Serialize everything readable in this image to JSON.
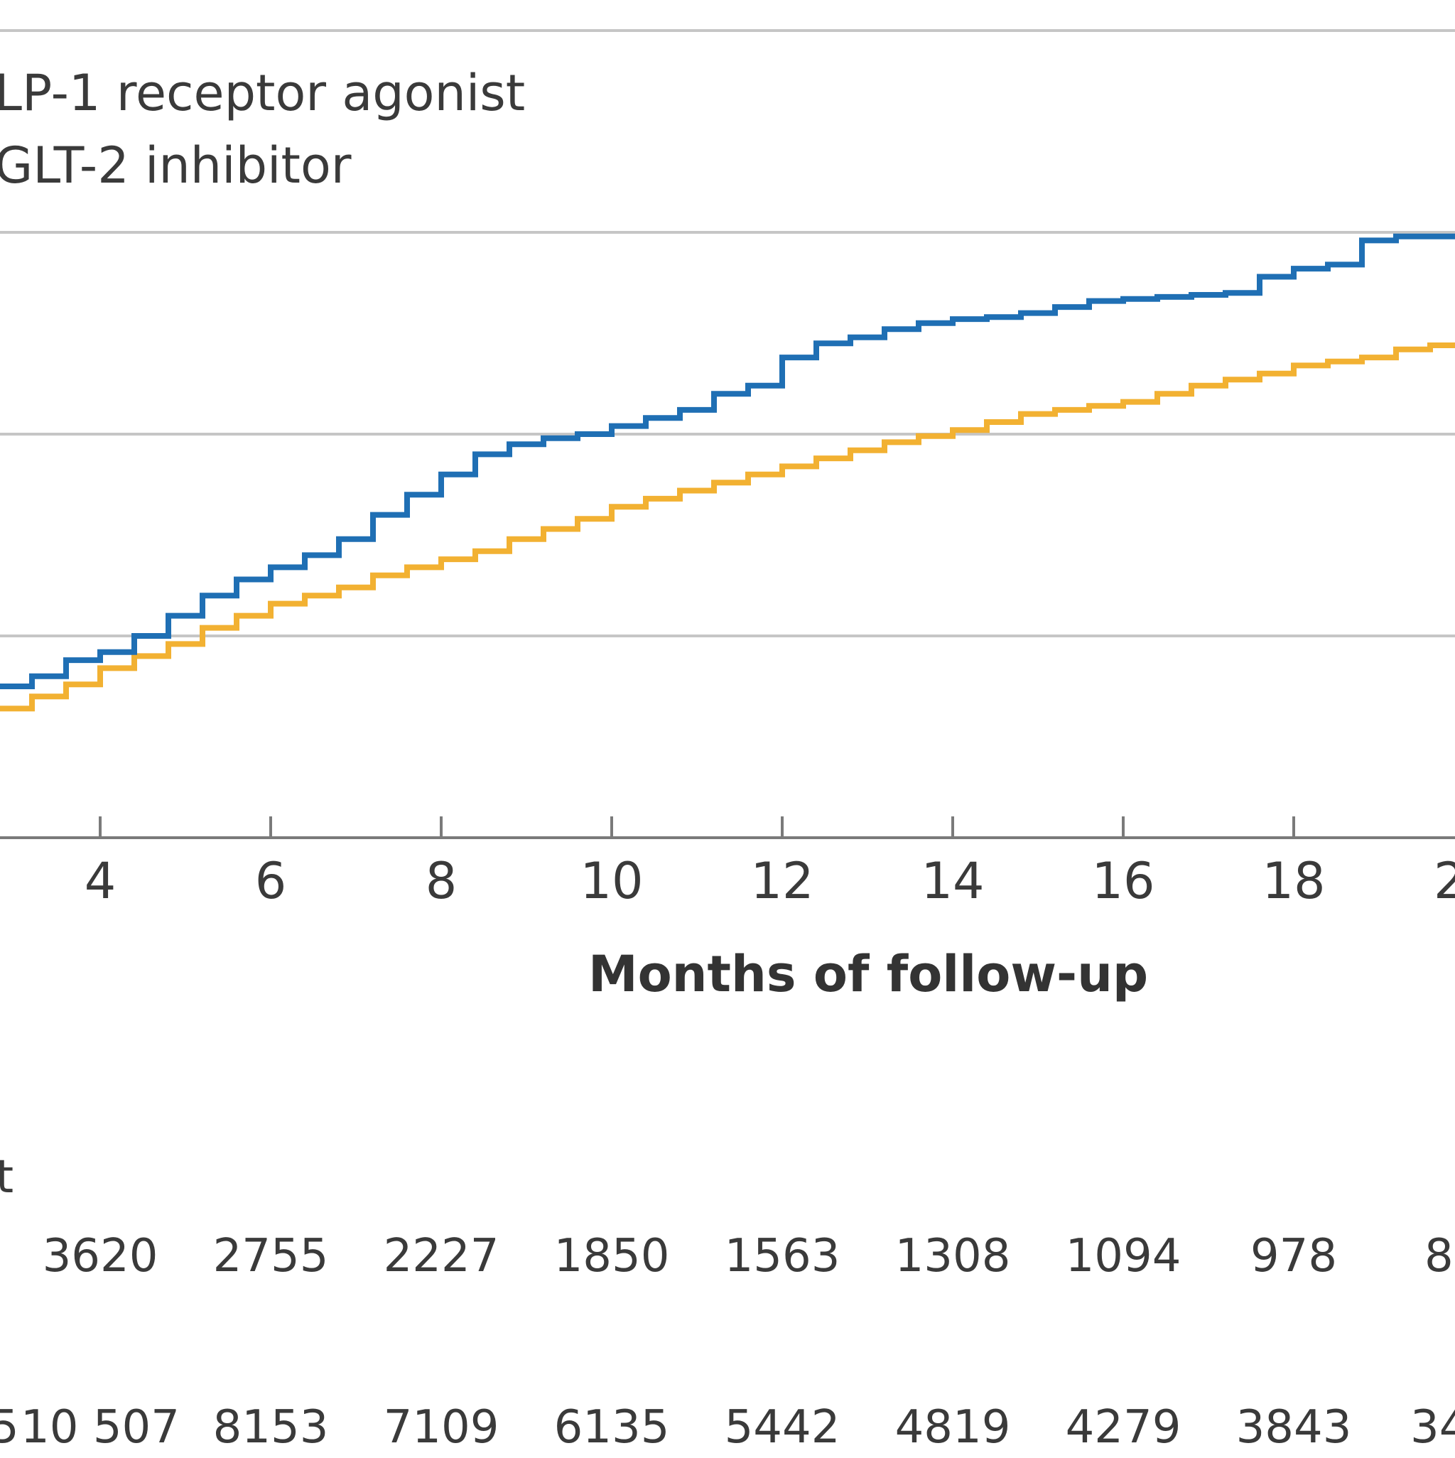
{
  "chart_data": {
    "type": "line",
    "step": true,
    "xlabel": "Months of follow-up",
    "ylabel": "",
    "x_ticks": [
      "4",
      "6",
      "8",
      "10",
      "12",
      "14",
      "16",
      "18",
      "2"
    ],
    "legend": [
      "LP-1 receptor agonist",
      "GLT-2 inhibitor"
    ],
    "colors": {
      "glp1": "#1f6fb4",
      "sglt2": "#f2b132",
      "grid": "#c6c6c6",
      "axis": "#7a7a7a"
    },
    "series": [
      {
        "key": "glp1",
        "color": "#1f6fb4",
        "points": [
          [
            2.8,
            0.75
          ],
          [
            3.2,
            0.8
          ],
          [
            3.6,
            0.88
          ],
          [
            4.0,
            0.92
          ],
          [
            4.4,
            1.0
          ],
          [
            4.8,
            1.1
          ],
          [
            5.2,
            1.2
          ],
          [
            5.6,
            1.28
          ],
          [
            6.0,
            1.34
          ],
          [
            6.4,
            1.4
          ],
          [
            6.8,
            1.48
          ],
          [
            7.2,
            1.6
          ],
          [
            7.6,
            1.7
          ],
          [
            8.0,
            1.8
          ],
          [
            8.4,
            1.9
          ],
          [
            8.8,
            1.95
          ],
          [
            9.2,
            1.98
          ],
          [
            9.6,
            2.0
          ],
          [
            10.0,
            2.04
          ],
          [
            10.4,
            2.08
          ],
          [
            10.8,
            2.12
          ],
          [
            11.2,
            2.2
          ],
          [
            11.6,
            2.24
          ],
          [
            12.0,
            2.38
          ],
          [
            12.4,
            2.45
          ],
          [
            12.8,
            2.48
          ],
          [
            13.2,
            2.52
          ],
          [
            13.6,
            2.55
          ],
          [
            14.0,
            2.57
          ],
          [
            14.4,
            2.58
          ],
          [
            14.8,
            2.6
          ],
          [
            15.2,
            2.63
          ],
          [
            15.6,
            2.66
          ],
          [
            16.0,
            2.67
          ],
          [
            16.4,
            2.68
          ],
          [
            16.8,
            2.69
          ],
          [
            17.2,
            2.7
          ],
          [
            17.6,
            2.78
          ],
          [
            18.0,
            2.82
          ],
          [
            18.4,
            2.84
          ],
          [
            18.8,
            2.96
          ],
          [
            19.2,
            2.98
          ],
          [
            19.6,
            2.98
          ],
          [
            20.0,
            3.0
          ],
          [
            20.2,
            3.02
          ]
        ]
      },
      {
        "key": "sglt2",
        "color": "#f2b132",
        "points": [
          [
            2.8,
            0.64
          ],
          [
            3.2,
            0.7
          ],
          [
            3.6,
            0.76
          ],
          [
            4.0,
            0.84
          ],
          [
            4.4,
            0.9
          ],
          [
            4.8,
            0.96
          ],
          [
            5.2,
            1.04
          ],
          [
            5.6,
            1.1
          ],
          [
            6.0,
            1.16
          ],
          [
            6.4,
            1.2
          ],
          [
            6.8,
            1.24
          ],
          [
            7.2,
            1.3
          ],
          [
            7.6,
            1.34
          ],
          [
            8.0,
            1.38
          ],
          [
            8.4,
            1.42
          ],
          [
            8.8,
            1.48
          ],
          [
            9.2,
            1.53
          ],
          [
            9.6,
            1.58
          ],
          [
            10.0,
            1.64
          ],
          [
            10.4,
            1.68
          ],
          [
            10.8,
            1.72
          ],
          [
            11.2,
            1.76
          ],
          [
            11.6,
            1.8
          ],
          [
            12.0,
            1.84
          ],
          [
            12.4,
            1.88
          ],
          [
            12.8,
            1.92
          ],
          [
            13.2,
            1.96
          ],
          [
            13.6,
            1.99
          ],
          [
            14.0,
            2.02
          ],
          [
            14.4,
            2.06
          ],
          [
            14.8,
            2.1
          ],
          [
            15.2,
            2.12
          ],
          [
            15.6,
            2.14
          ],
          [
            16.0,
            2.16
          ],
          [
            16.4,
            2.2
          ],
          [
            16.8,
            2.24
          ],
          [
            17.2,
            2.27
          ],
          [
            17.6,
            2.3
          ],
          [
            18.0,
            2.34
          ],
          [
            18.4,
            2.36
          ],
          [
            18.8,
            2.38
          ],
          [
            19.2,
            2.42
          ],
          [
            19.6,
            2.44
          ],
          [
            20.0,
            2.46
          ],
          [
            20.2,
            2.48
          ]
        ]
      }
    ],
    "risk_table": {
      "label_fragment": "t",
      "rows": [
        {
          "key": "glp1",
          "values": [
            "3620",
            "2755",
            "2227",
            "1850",
            "1563",
            "1308",
            "1094",
            "978",
            "8"
          ]
        },
        {
          "key": "sglt2",
          "lead_fragment": "5",
          "values": [
            "10 507",
            "8153",
            "7109",
            "6135",
            "5442",
            "4819",
            "4279",
            "3843",
            "34"
          ]
        }
      ]
    }
  }
}
